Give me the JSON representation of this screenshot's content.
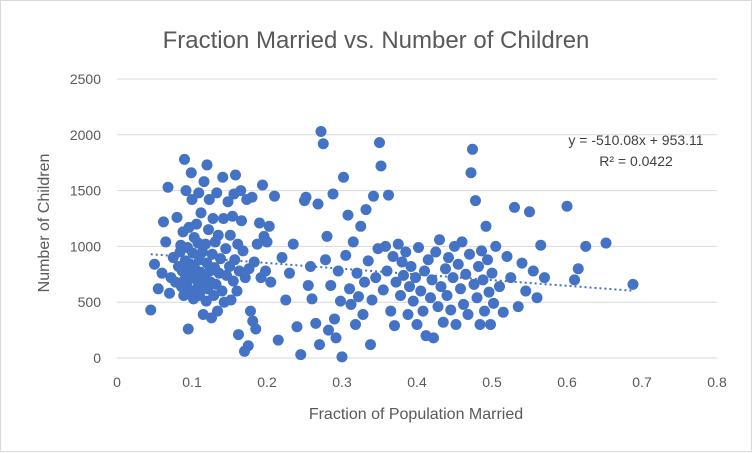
{
  "chart_data": {
    "type": "scatter",
    "title": "Fraction Married vs. Number of Children",
    "xlabel": "Fraction of Population Married",
    "ylabel": "Number of Children",
    "xlim": [
      0,
      0.8
    ],
    "ylim": [
      0,
      2500
    ],
    "x_ticks": [
      "0",
      "0.1",
      "0.2",
      "0.3",
      "0.4",
      "0.5",
      "0.6",
      "0.7",
      "0.8"
    ],
    "y_ticks": [
      "0",
      "500",
      "1000",
      "1500",
      "2000",
      "2500"
    ],
    "grid": true,
    "legend": "none",
    "marker_color": "#4472c4",
    "trendline": {
      "type": "linear",
      "slope": -510.08,
      "intercept": 953.11,
      "equation": "y = -510.08x + 953.11",
      "r_squared": "R² = 0.0422"
    },
    "points": [
      [
        0.045,
        430
      ],
      [
        0.05,
        840
      ],
      [
        0.055,
        620
      ],
      [
        0.06,
        760
      ],
      [
        0.062,
        1220
      ],
      [
        0.065,
        1040
      ],
      [
        0.068,
        1530
      ],
      [
        0.07,
        580
      ],
      [
        0.072,
        720
      ],
      [
        0.075,
        900
      ],
      [
        0.078,
        680
      ],
      [
        0.08,
        1260
      ],
      [
        0.082,
        820
      ],
      [
        0.084,
        950
      ],
      [
        0.085,
        1010
      ],
      [
        0.086,
        640
      ],
      [
        0.087,
        780
      ],
      [
        0.088,
        1130
      ],
      [
        0.089,
        560
      ],
      [
        0.09,
        700
      ],
      [
        0.09,
        1780
      ],
      [
        0.091,
        870
      ],
      [
        0.092,
        1500
      ],
      [
        0.093,
        650
      ],
      [
        0.094,
        990
      ],
      [
        0.095,
        760
      ],
      [
        0.095,
        260
      ],
      [
        0.096,
        1170
      ],
      [
        0.097,
        600
      ],
      [
        0.098,
        840
      ],
      [
        0.099,
        1660
      ],
      [
        0.1,
        720
      ],
      [
        0.1,
        1420
      ],
      [
        0.101,
        940
      ],
      [
        0.102,
        530
      ],
      [
        0.103,
        1080
      ],
      [
        0.104,
        800
      ],
      [
        0.105,
        610
      ],
      [
        0.106,
        1200
      ],
      [
        0.107,
        690
      ],
      [
        0.108,
        1030
      ],
      [
        0.109,
        1480
      ],
      [
        0.11,
        560
      ],
      [
        0.11,
        880
      ],
      [
        0.111,
        770
      ],
      [
        0.112,
        1300
      ],
      [
        0.113,
        650
      ],
      [
        0.114,
        950
      ],
      [
        0.115,
        390
      ],
      [
        0.116,
        1580
      ],
      [
        0.117,
        720
      ],
      [
        0.118,
        1020
      ],
      [
        0.119,
        510
      ],
      [
        0.12,
        850
      ],
      [
        0.12,
        1730
      ],
      [
        0.121,
        620
      ],
      [
        0.122,
        1150
      ],
      [
        0.123,
        1420
      ],
      [
        0.124,
        780
      ],
      [
        0.125,
        680
      ],
      [
        0.126,
        360
      ],
      [
        0.127,
        930
      ],
      [
        0.128,
        1250
      ],
      [
        0.129,
        560
      ],
      [
        0.13,
        810
      ],
      [
        0.131,
        1040
      ],
      [
        0.132,
        660
      ],
      [
        0.133,
        1480
      ],
      [
        0.134,
        420
      ],
      [
        0.135,
        1100
      ],
      [
        0.136,
        760
      ],
      [
        0.138,
        890
      ],
      [
        0.14,
        600
      ],
      [
        0.141,
        1620
      ],
      [
        0.142,
        1250
      ],
      [
        0.143,
        500
      ],
      [
        0.145,
        980
      ],
      [
        0.146,
        740
      ],
      [
        0.148,
        1400
      ],
      [
        0.15,
        820
      ],
      [
        0.151,
        1100
      ],
      [
        0.152,
        520
      ],
      [
        0.154,
        1270
      ],
      [
        0.155,
        690
      ],
      [
        0.156,
        1470
      ],
      [
        0.157,
        880
      ],
      [
        0.158,
        1640
      ],
      [
        0.16,
        600
      ],
      [
        0.161,
        1020
      ],
      [
        0.162,
        210
      ],
      [
        0.163,
        780
      ],
      [
        0.165,
        1500
      ],
      [
        0.166,
        1230
      ],
      [
        0.168,
        960
      ],
      [
        0.17,
        60
      ],
      [
        0.171,
        720
      ],
      [
        0.173,
        1420
      ],
      [
        0.175,
        110
      ],
      [
        0.176,
        800
      ],
      [
        0.178,
        420
      ],
      [
        0.18,
        1440
      ],
      [
        0.181,
        330
      ],
      [
        0.183,
        860
      ],
      [
        0.185,
        260
      ],
      [
        0.187,
        1020
      ],
      [
        0.19,
        1210
      ],
      [
        0.192,
        720
      ],
      [
        0.194,
        1550
      ],
      [
        0.196,
        1090
      ],
      [
        0.198,
        780
      ],
      [
        0.2,
        1040
      ],
      [
        0.203,
        1180
      ],
      [
        0.205,
        680
      ],
      [
        0.21,
        1450
      ],
      [
        0.215,
        160
      ],
      [
        0.22,
        900
      ],
      [
        0.225,
        520
      ],
      [
        0.23,
        760
      ],
      [
        0.235,
        1020
      ],
      [
        0.24,
        280
      ],
      [
        0.245,
        30
      ],
      [
        0.25,
        1410
      ],
      [
        0.252,
        1440
      ],
      [
        0.255,
        650
      ],
      [
        0.258,
        820
      ],
      [
        0.26,
        530
      ],
      [
        0.265,
        310
      ],
      [
        0.268,
        1380
      ],
      [
        0.27,
        120
      ],
      [
        0.272,
        2030
      ],
      [
        0.275,
        1920
      ],
      [
        0.278,
        880
      ],
      [
        0.28,
        1090
      ],
      [
        0.282,
        250
      ],
      [
        0.285,
        650
      ],
      [
        0.288,
        1470
      ],
      [
        0.29,
        350
      ],
      [
        0.292,
        180
      ],
      [
        0.295,
        780
      ],
      [
        0.298,
        510
      ],
      [
        0.3,
        10
      ],
      [
        0.302,
        1620
      ],
      [
        0.305,
        920
      ],
      [
        0.308,
        1280
      ],
      [
        0.31,
        620
      ],
      [
        0.312,
        480
      ],
      [
        0.315,
        1040
      ],
      [
        0.318,
        300
      ],
      [
        0.32,
        760
      ],
      [
        0.322,
        550
      ],
      [
        0.325,
        1180
      ],
      [
        0.328,
        390
      ],
      [
        0.33,
        680
      ],
      [
        0.332,
        1330
      ],
      [
        0.335,
        870
      ],
      [
        0.338,
        120
      ],
      [
        0.34,
        520
      ],
      [
        0.342,
        1450
      ],
      [
        0.345,
        720
      ],
      [
        0.348,
        980
      ],
      [
        0.35,
        1930
      ],
      [
        0.352,
        1720
      ],
      [
        0.355,
        610
      ],
      [
        0.358,
        1000
      ],
      [
        0.36,
        780
      ],
      [
        0.362,
        1460
      ],
      [
        0.365,
        420
      ],
      [
        0.368,
        910
      ],
      [
        0.37,
        290
      ],
      [
        0.372,
        680
      ],
      [
        0.375,
        1020
      ],
      [
        0.378,
        560
      ],
      [
        0.38,
        860
      ],
      [
        0.382,
        740
      ],
      [
        0.385,
        950
      ],
      [
        0.388,
        390
      ],
      [
        0.39,
        640
      ],
      [
        0.392,
        820
      ],
      [
        0.395,
        510
      ],
      [
        0.398,
        720
      ],
      [
        0.4,
        300
      ],
      [
        0.402,
        990
      ],
      [
        0.405,
        600
      ],
      [
        0.408,
        420
      ],
      [
        0.41,
        780
      ],
      [
        0.412,
        200
      ],
      [
        0.415,
        880
      ],
      [
        0.418,
        540
      ],
      [
        0.42,
        700
      ],
      [
        0.422,
        180
      ],
      [
        0.425,
        950
      ],
      [
        0.428,
        460
      ],
      [
        0.43,
        1060
      ],
      [
        0.432,
        640
      ],
      [
        0.435,
        320
      ],
      [
        0.438,
        800
      ],
      [
        0.44,
        560
      ],
      [
        0.442,
        900
      ],
      [
        0.445,
        430
      ],
      [
        0.448,
        720
      ],
      [
        0.45,
        1000
      ],
      [
        0.452,
        300
      ],
      [
        0.455,
        840
      ],
      [
        0.458,
        620
      ],
      [
        0.46,
        1040
      ],
      [
        0.462,
        480
      ],
      [
        0.465,
        750
      ],
      [
        0.468,
        390
      ],
      [
        0.47,
        930
      ],
      [
        0.472,
        1660
      ],
      [
        0.474,
        1870
      ],
      [
        0.476,
        660
      ],
      [
        0.478,
        1410
      ],
      [
        0.48,
        540
      ],
      [
        0.482,
        820
      ],
      [
        0.484,
        300
      ],
      [
        0.486,
        960
      ],
      [
        0.488,
        700
      ],
      [
        0.49,
        420
      ],
      [
        0.492,
        1180
      ],
      [
        0.494,
        880
      ],
      [
        0.496,
        590
      ],
      [
        0.498,
        300
      ],
      [
        0.5,
        760
      ],
      [
        0.502,
        490
      ],
      [
        0.505,
        1000
      ],
      [
        0.51,
        640
      ],
      [
        0.515,
        410
      ],
      [
        0.52,
        910
      ],
      [
        0.525,
        720
      ],
      [
        0.53,
        1350
      ],
      [
        0.535,
        460
      ],
      [
        0.54,
        850
      ],
      [
        0.545,
        600
      ],
      [
        0.55,
        1310
      ],
      [
        0.555,
        780
      ],
      [
        0.56,
        540
      ],
      [
        0.565,
        1010
      ],
      [
        0.57,
        720
      ],
      [
        0.6,
        1360
      ],
      [
        0.61,
        700
      ],
      [
        0.615,
        800
      ],
      [
        0.625,
        1000
      ],
      [
        0.652,
        1030
      ],
      [
        0.688,
        660
      ]
    ]
  }
}
